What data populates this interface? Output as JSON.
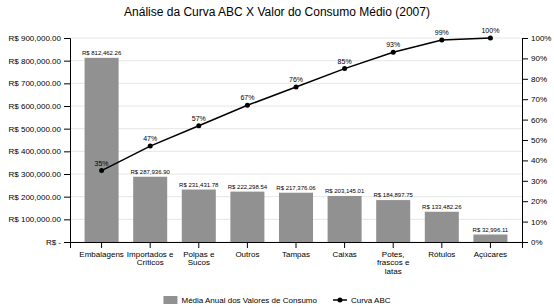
{
  "chart_data": {
    "type": "bar",
    "title": "Análise da Curva ABC X Valor do Consumo Médio (2007)",
    "categories": [
      "Embalagens",
      "Importados e\nCríticos",
      "Polpas e\nSucos",
      "Outros",
      "Tampas",
      "Caixas",
      "Potes,\nfrascos e\nlatas",
      "Rótulos",
      "Açúcares"
    ],
    "series": [
      {
        "name": "Média Anual dos Valores de Consumo",
        "type": "bar",
        "color": "#919191",
        "values": [
          812462.26,
          287936.9,
          231431.78,
          222298.54,
          217376.06,
          203145.01,
          184897.75,
          133482.26,
          32996.11
        ],
        "value_labels": [
          "R$ 812,462.26",
          "R$ 287,936.90",
          "R$ 231,431.78",
          "R$ 222,298.54",
          "R$ 217,376.06",
          "R$ 203,145.01",
          "R$ 184,897.75",
          "R$ 133,482.26",
          "R$ 32,996.11"
        ],
        "data_labels": true
      },
      {
        "name": "Curva ABC",
        "type": "line",
        "color": "#000000",
        "axis": "y2",
        "marker": "circle",
        "values": [
          35,
          47,
          57,
          67,
          76,
          85,
          93,
          99,
          100
        ],
        "value_labels": [
          "35%",
          "47%",
          "57%",
          "67%",
          "76%",
          "85%",
          "93%",
          "99%",
          "100%"
        ],
        "data_labels": true
      }
    ],
    "ylim": [
      0,
      900000
    ],
    "yticks": [
      {
        "value": 0,
        "label": "R$ -"
      },
      {
        "value": 100000,
        "label": "R$ 100,000.00"
      },
      {
        "value": 200000,
        "label": "R$ 200,000.00"
      },
      {
        "value": 300000,
        "label": "R$ 300,000.00"
      },
      {
        "value": 400000,
        "label": "R$ 400,000.00"
      },
      {
        "value": 500000,
        "label": "R$ 500,000.00"
      },
      {
        "value": 600000,
        "label": "R$ 600,000.00"
      },
      {
        "value": 700000,
        "label": "R$ 700,000.00"
      },
      {
        "value": 800000,
        "label": "R$ 800,000.00"
      },
      {
        "value": 900000,
        "label": "R$ 900,000.00"
      }
    ],
    "y2lim": [
      0,
      100
    ],
    "y2ticks": [
      {
        "value": 0,
        "label": "0%"
      },
      {
        "value": 10,
        "label": "10%"
      },
      {
        "value": 20,
        "label": "20%"
      },
      {
        "value": 30,
        "label": "30%"
      },
      {
        "value": 40,
        "label": "40%"
      },
      {
        "value": 50,
        "label": "50%"
      },
      {
        "value": 60,
        "label": "60%"
      },
      {
        "value": 70,
        "label": "70%"
      },
      {
        "value": 80,
        "label": "80%"
      },
      {
        "value": 90,
        "label": "90%"
      },
      {
        "value": 100,
        "label": "100%"
      }
    ],
    "grid": true,
    "legend": "bottom"
  }
}
